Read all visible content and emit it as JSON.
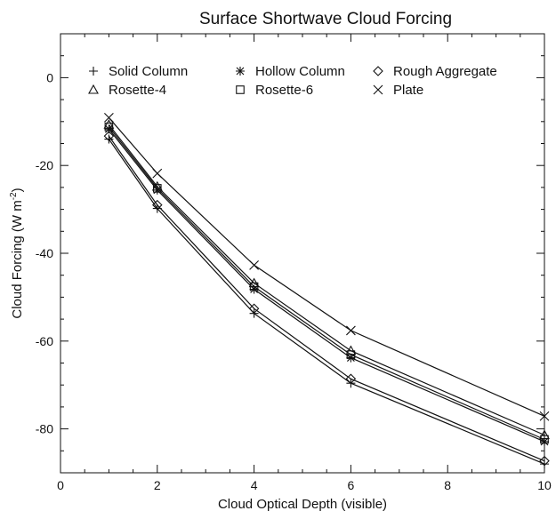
{
  "chart_data": {
    "type": "line",
    "title": "Surface Shortwave Cloud Forcing",
    "xlabel": "Cloud Optical Depth (visible)",
    "ylabel": "Cloud Forcing (W m",
    "ylabel_sup": "-2",
    "ylabel_close": ")",
    "xlim": [
      0,
      10
    ],
    "ylim": [
      -90,
      10
    ],
    "x_ticks": [
      0,
      2,
      4,
      6,
      8,
      10
    ],
    "y_ticks": [
      -80,
      -60,
      -40,
      -20,
      0
    ],
    "x_tick_labels": [
      "0",
      "2",
      "4",
      "6",
      "8",
      "10"
    ],
    "y_tick_labels": [
      "-80",
      "-60",
      "-40",
      "-20",
      "0"
    ],
    "legend_placement": "top",
    "x": [
      1,
      2,
      4,
      6,
      10
    ],
    "series": [
      {
        "name": "Solid Column",
        "marker": "plus",
        "values": [
          -14.0,
          -29.8,
          -53.7,
          -69.6,
          -88.0
        ]
      },
      {
        "name": "Hollow Column",
        "marker": "asterisk",
        "values": [
          -11.7,
          -25.6,
          -48.2,
          -63.8,
          -82.9
        ]
      },
      {
        "name": "Rough Aggregate",
        "marker": "diamond",
        "values": [
          -13.3,
          -29.0,
          -52.6,
          -68.6,
          -87.3
        ]
      },
      {
        "name": "Rosette-4",
        "marker": "triangle",
        "values": [
          -10.7,
          -24.8,
          -46.8,
          -62.2,
          -81.4
        ]
      },
      {
        "name": "Rosette-6",
        "marker": "square",
        "values": [
          -11.2,
          -25.2,
          -47.6,
          -63.1,
          -82.4
        ]
      },
      {
        "name": "Plate",
        "marker": "x",
        "values": [
          -9.1,
          -21.8,
          -42.7,
          -57.6,
          -77.1
        ]
      }
    ]
  }
}
